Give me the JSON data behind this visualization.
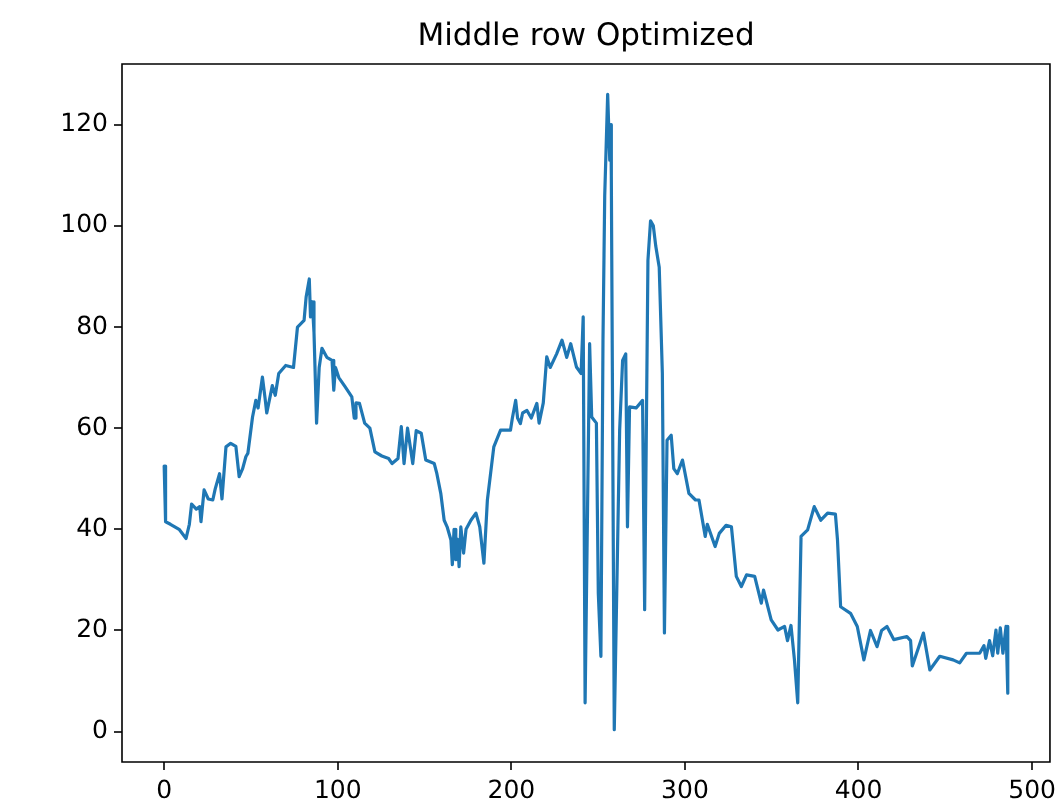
{
  "chart_data": {
    "type": "line",
    "title": "Middle row Optimized",
    "color": "#1f77b4",
    "x": [
      0,
      0.8,
      3.6,
      8.6,
      12.6,
      14.5,
      15.8,
      18.5,
      20.5,
      21.2,
      23,
      25.4,
      28,
      29.4,
      31.9,
      33.3,
      35.6,
      38.3,
      41.3,
      43.2,
      45.2,
      47.1,
      48.2,
      50.9,
      52.8,
      54.1,
      56.6,
      58.1,
      59.1,
      62.3,
      64,
      66,
      70,
      74.5,
      76.8,
      80.6,
      81.8,
      83.6,
      84.3,
      85.3,
      86.3,
      87.8,
      89.3,
      90.9,
      93.7,
      96.7,
      97.7,
      98.7,
      100.6,
      104.2,
      108.1,
      109.5,
      110.5,
      112.5,
      115.5,
      118.5,
      121.4,
      125.4,
      129.3,
      131.3,
      134.7,
      136.6,
      138.2,
      140.2,
      143.2,
      145.2,
      148.1,
      150.7,
      155.6,
      157.1,
      159.4,
      161.3,
      163,
      165.2,
      166,
      167,
      168,
      169,
      169.9,
      170.9,
      172.5,
      173.9,
      176.7,
      179.6,
      181.8,
      184.2,
      186.2,
      189.9,
      193.8,
      199.5,
      200.6,
      202.5,
      203.6,
      205.2,
      206.5,
      209,
      211.5,
      214.7,
      216,
      218.4,
      220.4,
      222.4,
      226.1,
      229.2,
      231.9,
      234.2,
      237.5,
      240.2,
      241.4,
      242.5,
      245.1,
      246.3,
      249,
      250.1,
      251.6,
      252.8,
      253.8,
      255.5,
      256.7,
      257.3,
      257.6,
      259.3,
      262.4,
      264.1,
      265.9,
      266.9,
      268.1,
      271.9,
      275.6,
      276.8,
      278.7,
      280.2,
      281.8,
      283.2,
      285.2,
      287,
      288.2,
      289.7,
      292.1,
      293.6,
      295.6,
      298.6,
      302.3,
      306.1,
      308.1,
      311.7,
      312.9,
      317.4,
      319.8,
      323.7,
      326.8,
      329.6,
      332.5,
      335.5,
      340.2,
      344,
      345.3,
      349.7,
      353.6,
      357.4,
      359.1,
      361.1,
      363.1,
      365,
      366.9,
      370.7,
      374.5,
      378.3,
      382.2,
      386.7,
      387.9,
      389.7,
      395.4,
      399.3,
      403.1,
      406.9,
      410.7,
      413.3,
      416.4,
      420.3,
      427.9,
      430,
      431,
      437.4,
      441.1,
      446.8,
      454.5,
      458.3,
      462.2,
      469.8,
      472.3,
      473.3,
      475.5,
      477.3,
      479.2,
      480.2,
      481.7,
      483.2,
      485,
      486
    ],
    "values": [
      52.5,
      41.5,
      41,
      40,
      38.2,
      41,
      45,
      44,
      44.5,
      41.5,
      47.8,
      46,
      45.8,
      48,
      51,
      46,
      56.3,
      57,
      56.4,
      50.4,
      52,
      54.4,
      55,
      62.2,
      65.5,
      64,
      70.1,
      66,
      63,
      68.4,
      66.5,
      70.8,
      72.4,
      72,
      80,
      81.3,
      86,
      89.5,
      82,
      85,
      79,
      61,
      72,
      75.8,
      74,
      73.4,
      67.5,
      72,
      70,
      68.2,
      66.2,
      62,
      65,
      64.9,
      61,
      60,
      55.3,
      54.5,
      54,
      53,
      54,
      60.3,
      53,
      60,
      53,
      59.5,
      59,
      53.7,
      53,
      51,
      47,
      41.8,
      40.5,
      37.9,
      33,
      40,
      34,
      38,
      32.6,
      40.5,
      35.3,
      40,
      41.8,
      43.2,
      40.5,
      33.3,
      45.8,
      56.3,
      59.6,
      59.6,
      62,
      65.5,
      62,
      60.9,
      63,
      63.5,
      62,
      64.9,
      61,
      65,
      74.1,
      72,
      74.7,
      77.4,
      74,
      76.7,
      72.1,
      70.8,
      82,
      5.7,
      76.7,
      62.2,
      61,
      27.4,
      14.9,
      77.4,
      106,
      126,
      113,
      120,
      110,
      0.4,
      59.6,
      73.4,
      74.7,
      40.5,
      64.2,
      64,
      65.5,
      24.1,
      93.2,
      101,
      100,
      96,
      91.8,
      70.8,
      19.5,
      57.6,
      58.6,
      52,
      51,
      53.7,
      47.1,
      45.8,
      45.8,
      38.6,
      41,
      36.6,
      39.2,
      40.8,
      40.5,
      30.7,
      28.7,
      31,
      30.7,
      25.4,
      28,
      22.1,
      20.1,
      20.8,
      18,
      21,
      14.2,
      5.7,
      38.6,
      39.9,
      44.5,
      41.8,
      43.2,
      43,
      37.9,
      24.7,
      23.4,
      20.8,
      14.2,
      20,
      16.8,
      20,
      20.8,
      18.2,
      18.8,
      18,
      13,
      19.5,
      12.2,
      14.9,
      14.2,
      13.6,
      15.5,
      15.5,
      17,
      14.5,
      18,
      15,
      20.1,
      15.5,
      20.5,
      15.5,
      20.8,
      7.6
    ],
    "xlim": [
      -24.3,
      510.3
    ],
    "ylim": [
      -6,
      132
    ],
    "xticks": [
      0,
      100,
      200,
      300,
      400,
      500
    ],
    "yticks": [
      0,
      20,
      40,
      60,
      80,
      100,
      120
    ]
  }
}
